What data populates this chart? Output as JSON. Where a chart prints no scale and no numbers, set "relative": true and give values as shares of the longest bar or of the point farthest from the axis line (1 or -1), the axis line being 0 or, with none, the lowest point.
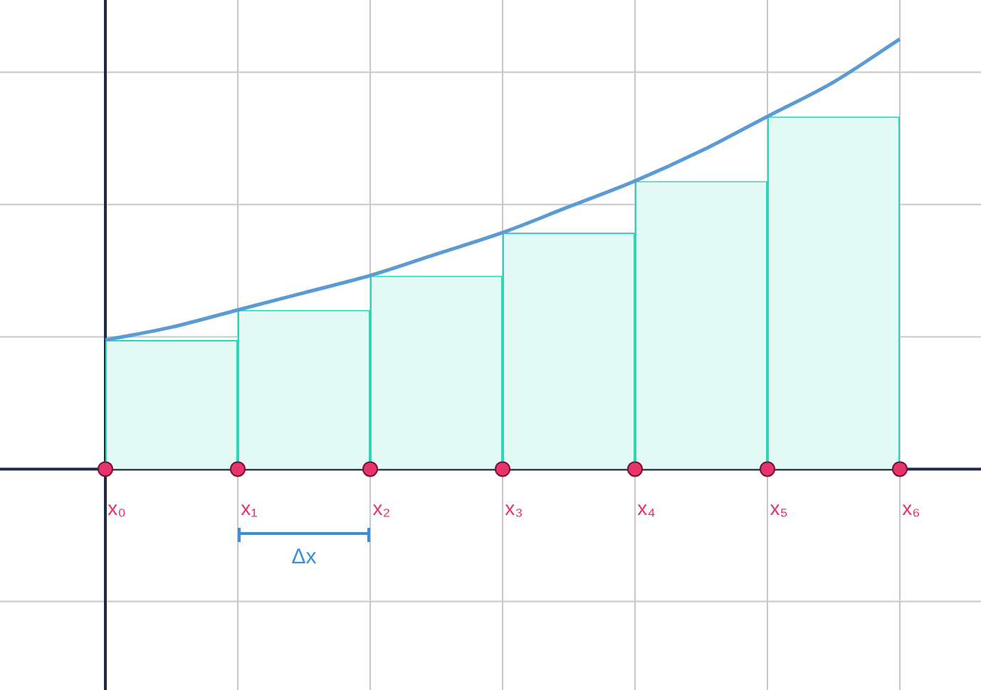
{
  "chart_data": {
    "type": "bar",
    "relative": true,
    "grid": true,
    "legend": false,
    "tick_labels": "x",
    "categories": [
      "x₀",
      null,
      "x₁",
      null,
      "x₂",
      null,
      "x₃",
      null,
      "x₄",
      null,
      "x₅",
      null,
      "x₆"
    ],
    "series": [
      {
        "color": "#e3faf6",
        "values": [
          null,
          0.3,
          null,
          0.37,
          null,
          0.45,
          null,
          0.55,
          null,
          0.67,
          null,
          0.82,
          null
        ]
      },
      {
        "type": "line",
        "color": "#5b9bd5",
        "marker": "none",
        "values": [
          0.3,
          0.33,
          0.37,
          0.41,
          0.45,
          0.5,
          0.55,
          0.61,
          0.67,
          0.74,
          0.82,
          0.9,
          1.0
        ]
      },
      {
        "type": "scatter",
        "color": "#e8336b",
        "marker": "circle",
        "values": [
          0,
          null,
          0,
          null,
          0,
          null,
          0,
          null,
          0,
          null,
          0,
          null,
          0
        ]
      }
    ],
    "ref_lines": [
      {
        "axis": "x",
        "value": "x₀",
        "color": "#1b2a45"
      }
    ],
    "annotations": [
      "Δx"
    ]
  }
}
